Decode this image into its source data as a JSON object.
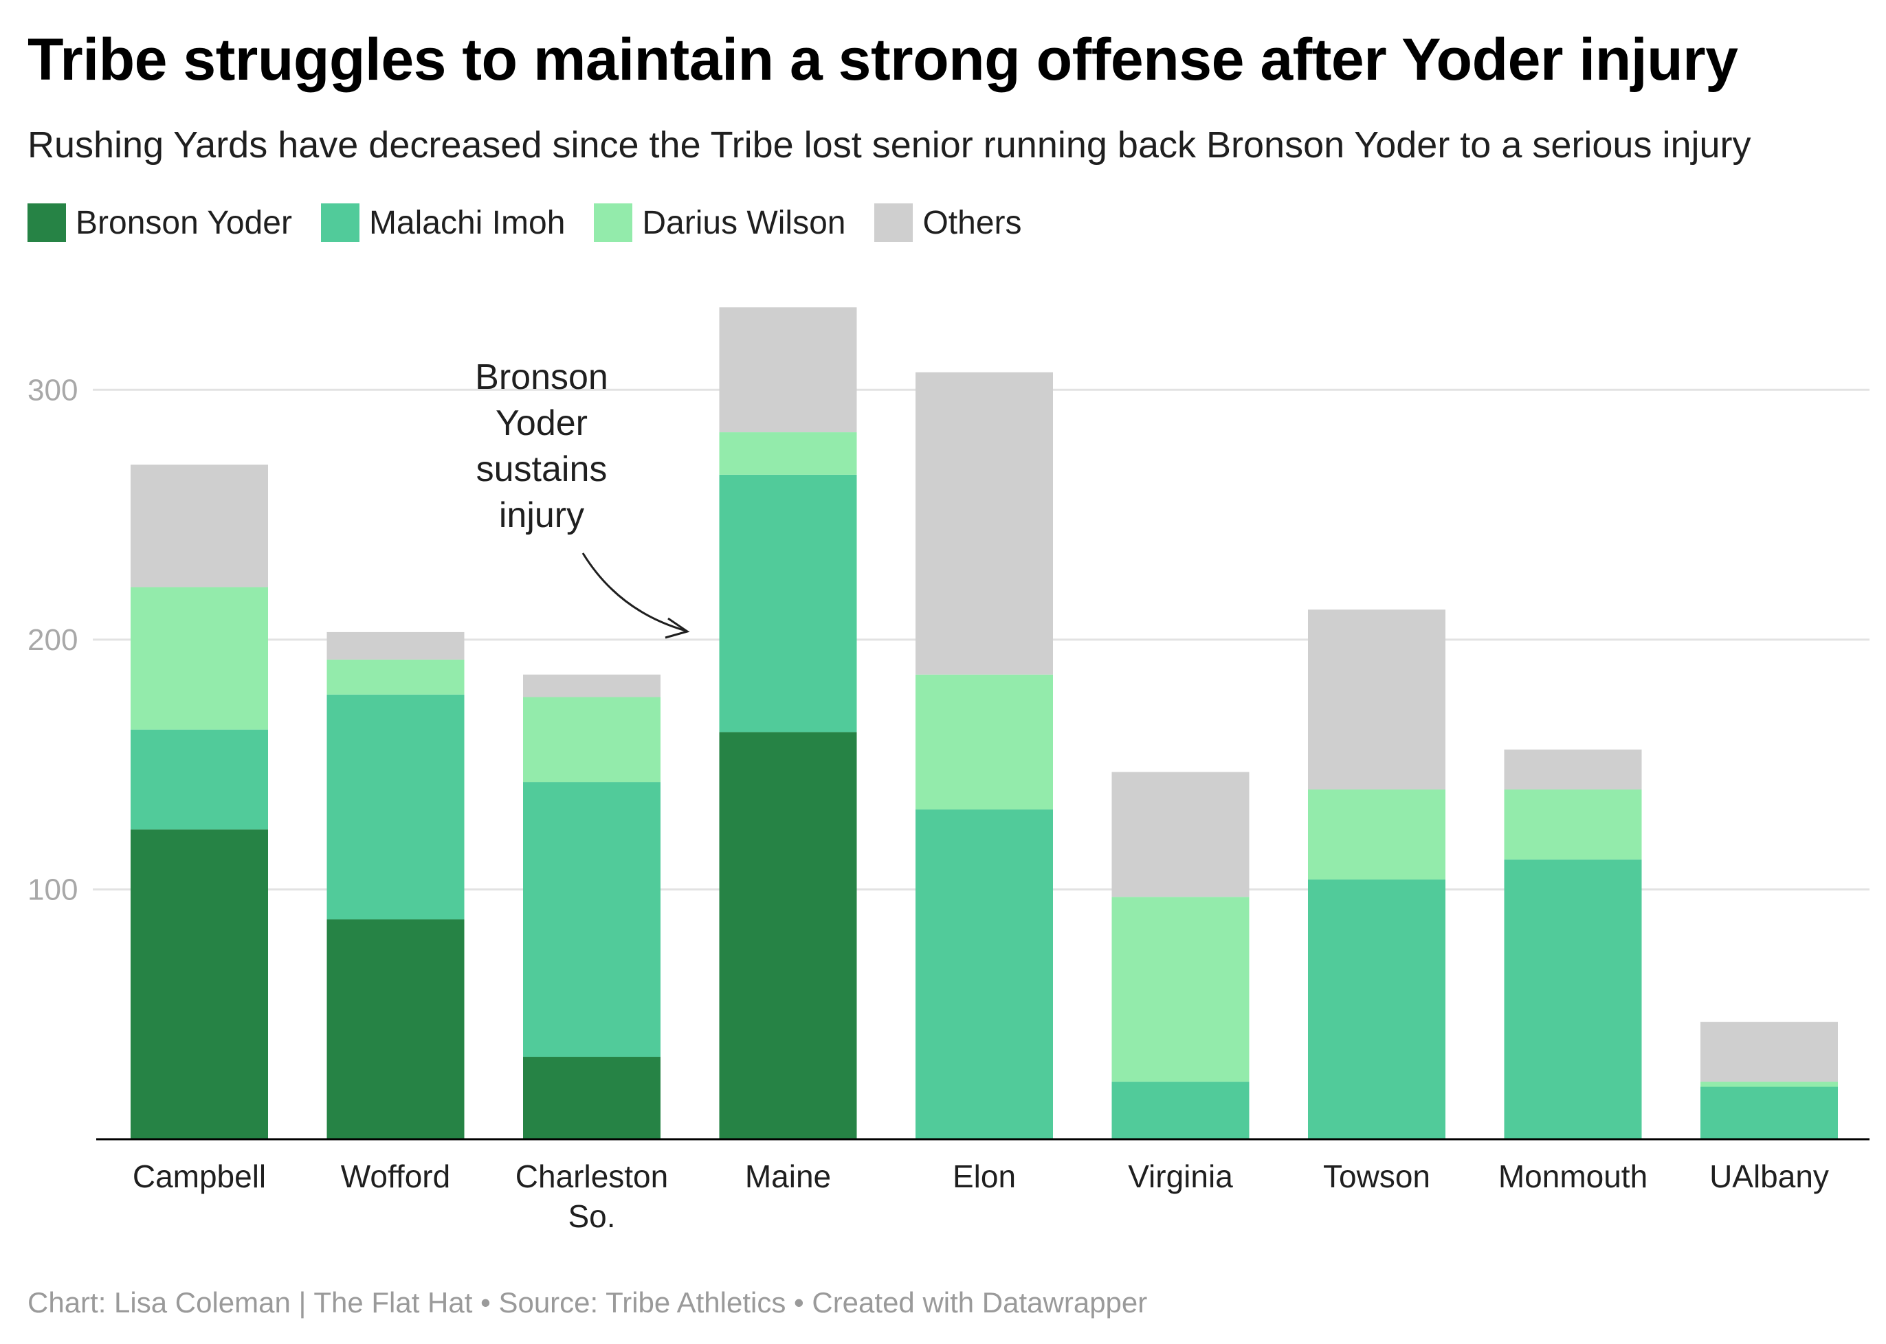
{
  "title": "Tribe struggles to maintain a strong offense after Yoder injury",
  "subtitle": "Rushing Yards have decreased since the Tribe lost senior running back Bronson Yoder to a serious injury",
  "footer": "Chart: Lisa Coleman | The Flat Hat • Source: Tribe Athletics • Created with Datawrapper",
  "chart_data": {
    "type": "bar",
    "stacked": true,
    "categories": [
      "Campbell",
      "Wofford",
      "Charleston So.",
      "Maine",
      "Elon",
      "Virginia",
      "Towson",
      "Monmouth",
      "UAlbany"
    ],
    "category_lines": [
      [
        "Campbell"
      ],
      [
        "Wofford"
      ],
      [
        "Charleston",
        "So."
      ],
      [
        "Maine"
      ],
      [
        "Elon"
      ],
      [
        "Virginia"
      ],
      [
        "Towson"
      ],
      [
        "Monmouth"
      ],
      [
        "UAlbany"
      ]
    ],
    "series": [
      {
        "name": "Bronson Yoder",
        "color": "#268345",
        "values": [
          124,
          88,
          33,
          163,
          0,
          0,
          0,
          0,
          0
        ]
      },
      {
        "name": "Malachi Imoh",
        "color": "#51cb9a",
        "values": [
          40,
          90,
          110,
          103,
          132,
          23,
          104,
          112,
          23
        ]
      },
      {
        "name": "Darius Wilson",
        "color": "#93ebab",
        "values": [
          57,
          14,
          34,
          17,
          54,
          74,
          36,
          28,
          -2
        ]
      },
      {
        "name": "Others",
        "color": "#cfcfcf",
        "values": [
          49,
          11,
          9,
          50,
          121,
          50,
          72,
          16,
          24
        ]
      }
    ],
    "y_ticks": [
      100,
      200,
      300
    ],
    "ylim": [
      0,
      335
    ],
    "grid": true,
    "legend_position": "top-left",
    "annotation": {
      "lines": [
        "Bronson",
        "Yoder",
        "sustains",
        "injury"
      ],
      "points_to": "Maine"
    }
  }
}
